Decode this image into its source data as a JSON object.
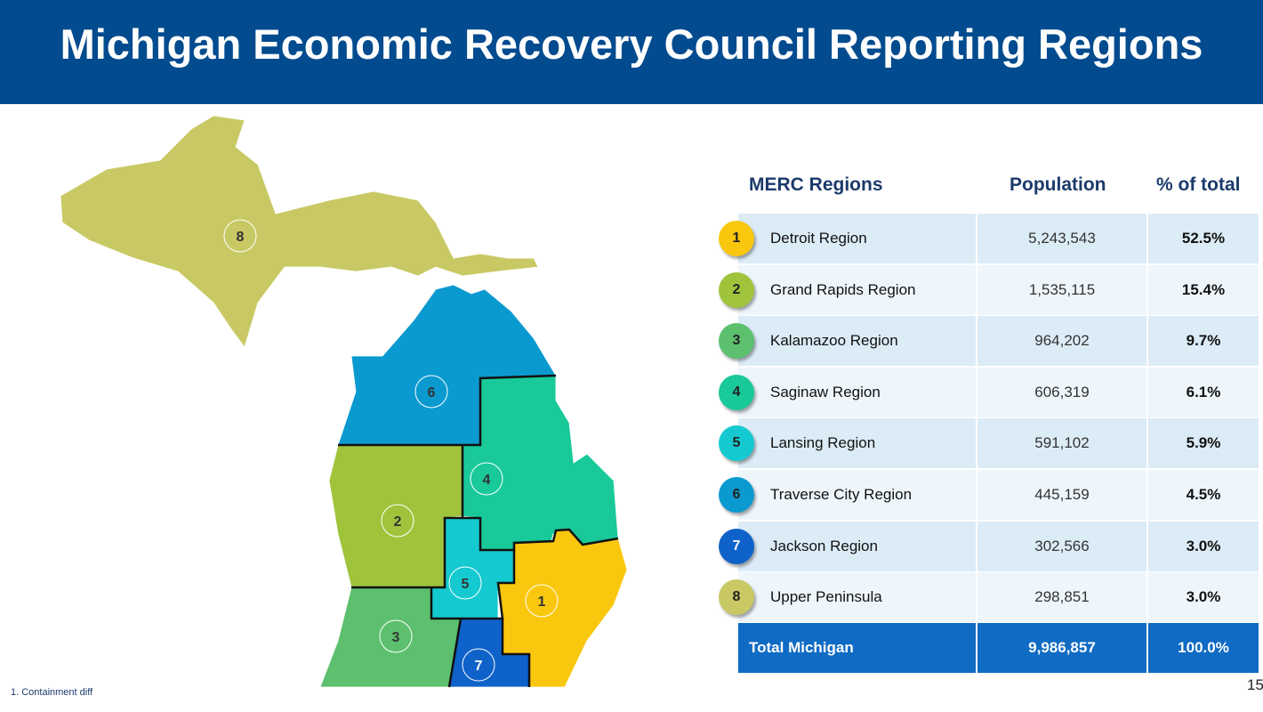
{
  "title": "Michigan Economic Recovery Council Reporting Regions",
  "table": {
    "headers": [
      "MERC Regions",
      "Population",
      "% of total"
    ],
    "rows": [
      {
        "num": "1",
        "name": "Detroit Region",
        "population": "5,243,543",
        "pct": "52.5%",
        "color": "#f9c80e"
      },
      {
        "num": "2",
        "name": "Grand Rapids Region",
        "population": "1,535,115",
        "pct": "15.4%",
        "color": "#9fc43c"
      },
      {
        "num": "3",
        "name": "Kalamazoo Region",
        "population": "964,202",
        "pct": "9.7%",
        "color": "#5cc06e"
      },
      {
        "num": "4",
        "name": "Saginaw Region",
        "population": "606,319",
        "pct": "6.1%",
        "color": "#19c99a"
      },
      {
        "num": "5",
        "name": "Lansing Region",
        "population": "591,102",
        "pct": "5.9%",
        "color": "#14cad0"
      },
      {
        "num": "6",
        "name": "Traverse City Region",
        "population": "445,159",
        "pct": "4.5%",
        "color": "#0b9ad0"
      },
      {
        "num": "7",
        "name": "Jackson Region",
        "population": "302,566",
        "pct": "3.0%",
        "color": "#0f62c9"
      },
      {
        "num": "8",
        "name": "Upper Peninsula",
        "population": "298,851",
        "pct": "3.0%",
        "color": "#c8c964"
      }
    ],
    "total": {
      "name": "Total Michigan",
      "population": "9,986,857",
      "pct": "100.0%"
    }
  },
  "footnote": "1. Containment diff",
  "page_number": "15"
}
